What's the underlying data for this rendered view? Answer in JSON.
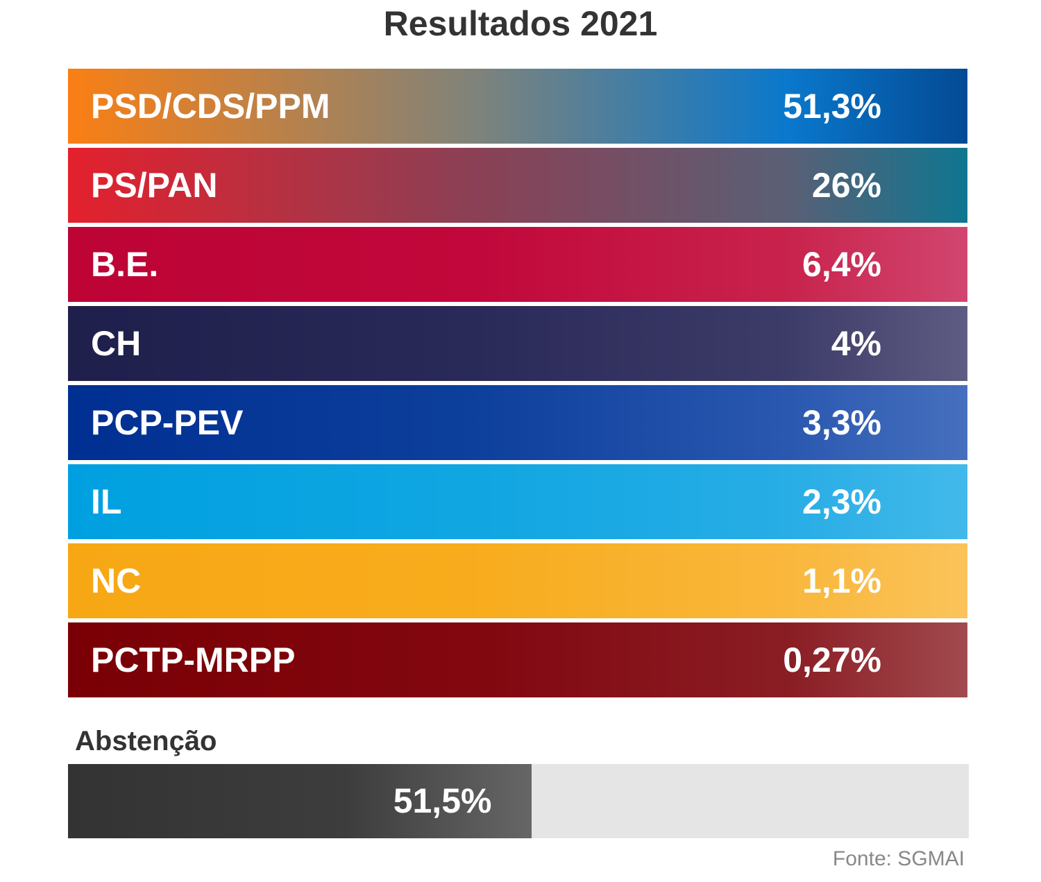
{
  "chart_data": {
    "type": "table",
    "title": "Resultados 2021",
    "results": [
      {
        "party": "PSD/CDS/PPM",
        "value_label": "51,3%",
        "value": 51.3,
        "colors": [
          "#fa7f14",
          "#80837a",
          "#0a78cc",
          "#034a94"
        ]
      },
      {
        "party": "PS/PAN",
        "value_label": "26%",
        "value": 26.0,
        "colors": [
          "#e4202d",
          "#8b4055",
          "#5a5f75",
          "#0f7690"
        ]
      },
      {
        "party": "B.E.",
        "value_label": "6,4%",
        "value": 6.4,
        "colors": [
          "#bd0435",
          "#c1073b",
          "#c8234c",
          "#d1466f"
        ]
      },
      {
        "party": "CH",
        "value_label": "4%",
        "value": 4.0,
        "colors": [
          "#1f1f4c",
          "#2a2a58",
          "#3d3b68",
          "#5e5c82"
        ]
      },
      {
        "party": "PCP-PEV",
        "value_label": "3,3%",
        "value": 3.3,
        "colors": [
          "#002f92",
          "#0d3f9c",
          "#2a58b0",
          "#4670be"
        ]
      },
      {
        "party": "IL",
        "value_label": "2,3%",
        "value": 2.3,
        "colors": [
          "#00a0e0",
          "#10a6e2",
          "#28ade5",
          "#42b9ea"
        ]
      },
      {
        "party": "NC",
        "value_label": "1,1%",
        "value": 1.1,
        "colors": [
          "#f7a714",
          "#f8ac1d",
          "#f9b73c",
          "#fac35a"
        ]
      },
      {
        "party": "PCTP-MRPP",
        "value_label": "0,27%",
        "value": 0.27,
        "colors": [
          "#790005",
          "#82070f",
          "#8a1d24",
          "#a14a4e"
        ]
      }
    ],
    "abstention": {
      "label": "Abstenção",
      "value_label": "51,5%",
      "value": 51.5
    },
    "source": "Fonte: SGMAI"
  }
}
